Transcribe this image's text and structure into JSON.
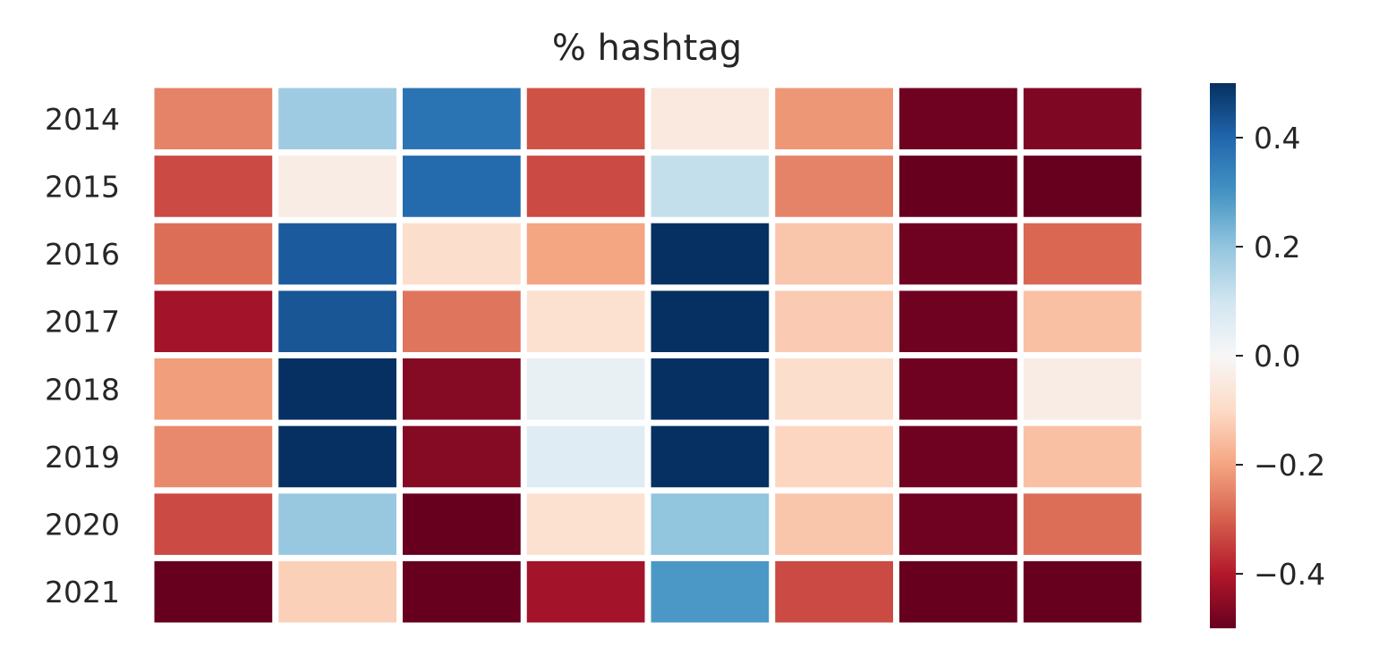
{
  "chart_data": {
    "type": "heatmap",
    "title": "% hashtag",
    "rows": [
      "2014",
      "2015",
      "2016",
      "2017",
      "2018",
      "2019",
      "2020",
      "2021"
    ],
    "columns_count": 8,
    "values": [
      [
        -0.25,
        0.18,
        0.37,
        -0.32,
        -0.05,
        -0.22,
        -0.49,
        -0.47
      ],
      [
        -0.33,
        -0.04,
        0.39,
        -0.33,
        0.12,
        -0.25,
        -0.5,
        -0.5
      ],
      [
        -0.28,
        0.42,
        -0.09,
        -0.2,
        0.5,
        -0.14,
        -0.49,
        -0.29
      ],
      [
        -0.42,
        0.43,
        -0.27,
        -0.08,
        0.5,
        -0.13,
        -0.49,
        -0.15
      ],
      [
        -0.21,
        0.5,
        -0.46,
        0.04,
        0.5,
        -0.09,
        -0.49,
        -0.04
      ],
      [
        -0.24,
        0.5,
        -0.46,
        0.06,
        0.5,
        -0.11,
        -0.49,
        -0.15
      ],
      [
        -0.33,
        0.19,
        -0.5,
        -0.08,
        0.2,
        -0.14,
        -0.49,
        -0.28
      ],
      [
        -0.5,
        -0.12,
        -0.5,
        -0.42,
        0.29,
        -0.33,
        -0.5,
        -0.5
      ]
    ],
    "colormap": "RdBu",
    "vmin": -0.5,
    "vmax": 0.5,
    "colorbar": {
      "ticks": [
        0.4,
        0.2,
        0.0,
        -0.2,
        -0.4
      ],
      "tick_labels": [
        "0.4",
        "0.2",
        "0.0",
        "−0.2",
        "−0.4"
      ]
    },
    "grid": false,
    "legend": "colorbar-right"
  },
  "colors": {
    "background": "#ffffff",
    "text": "#262626",
    "cell_gap": "#ffffff"
  }
}
